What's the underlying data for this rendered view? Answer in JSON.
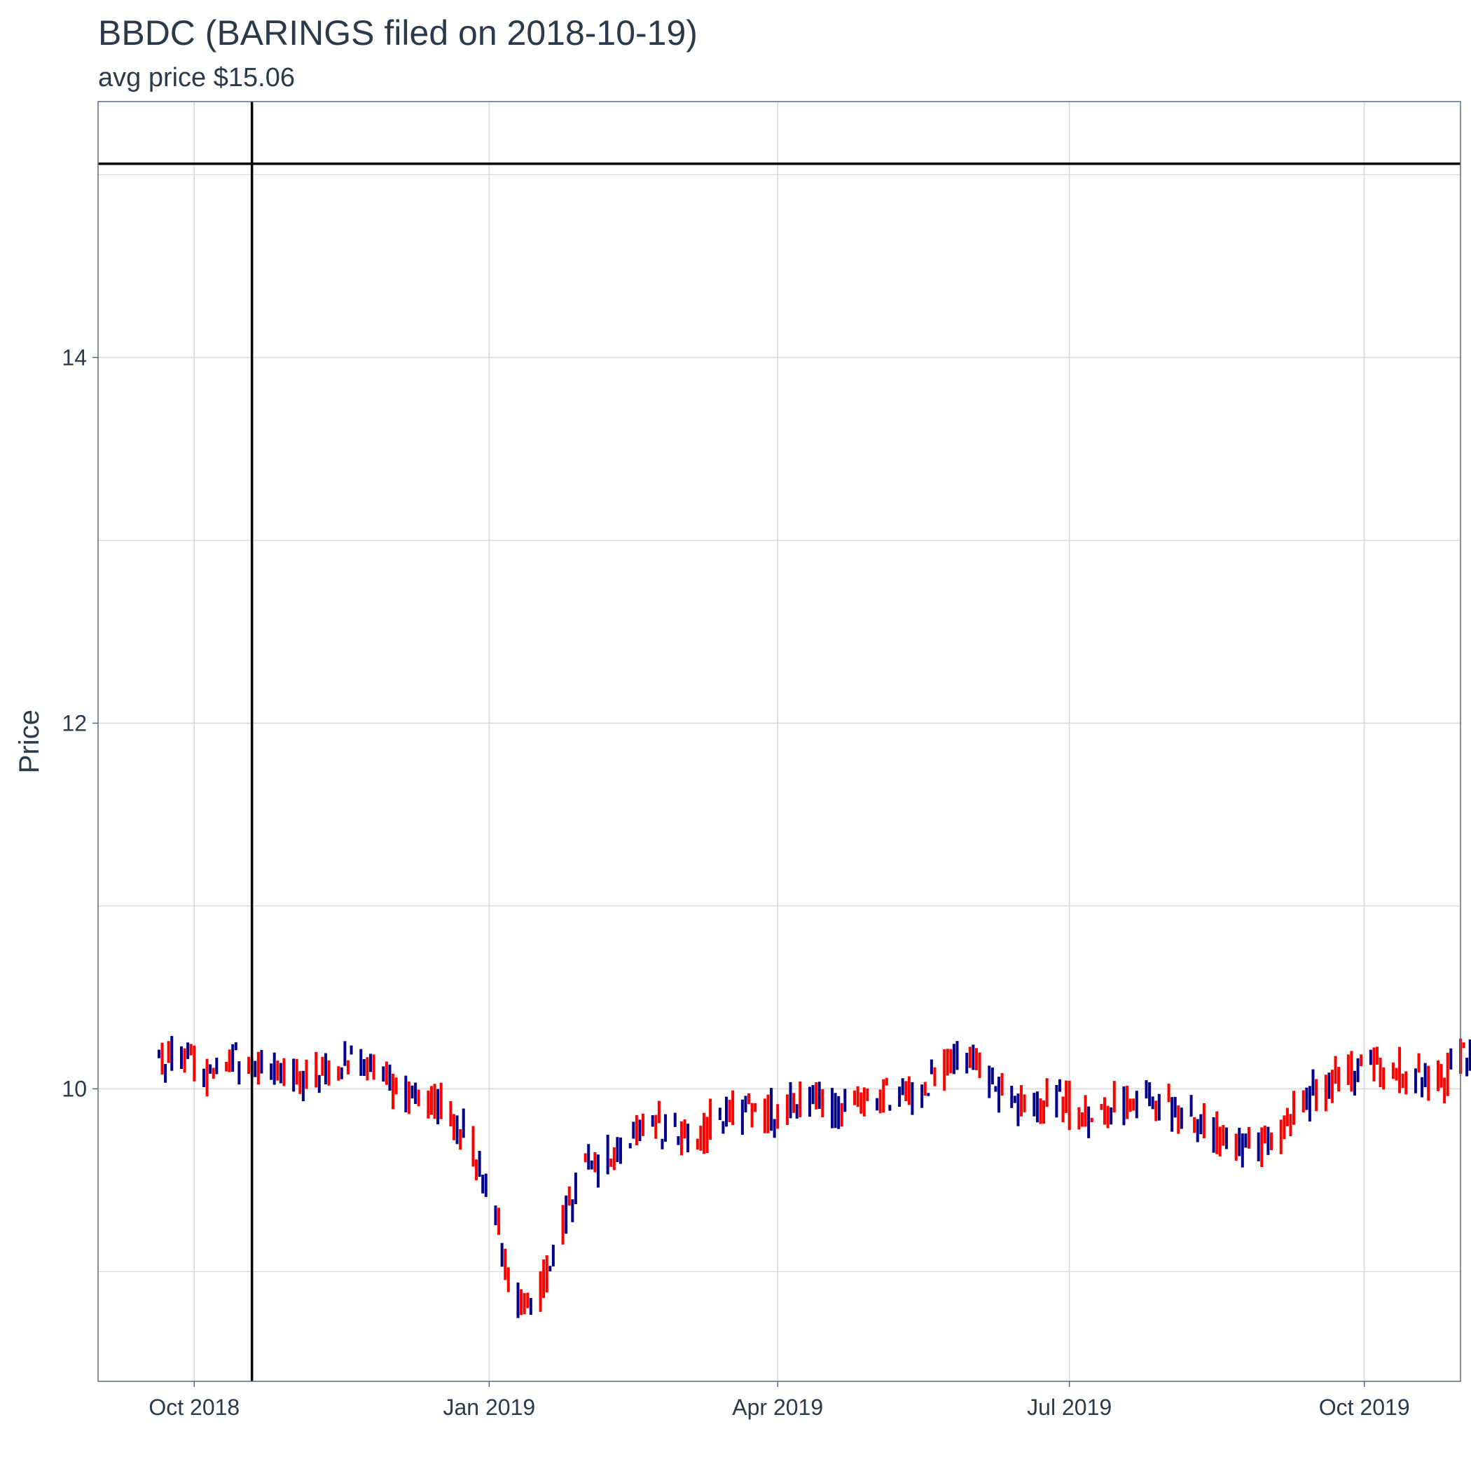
{
  "chart_data": {
    "type": "ohlc",
    "title": "BBDC (BARINGS filed on 2018-10-19)",
    "subtitle": "avg price $15.06",
    "ylabel": "Price",
    "xlabel": "",
    "xlim": [
      "2018-09-01",
      "2019-10-31"
    ],
    "ylim": [
      8.4,
      15.4
    ],
    "y_major_ticks": [
      10,
      12,
      14
    ],
    "y_minor_gridlines": [
      9,
      11,
      13,
      15
    ],
    "x_ticks": [
      {
        "date": "2018-10-01",
        "label": "Oct 2018"
      },
      {
        "date": "2019-01-01",
        "label": "Jan 2019"
      },
      {
        "date": "2019-04-01",
        "label": "Apr 2019"
      },
      {
        "date": "2019-07-01",
        "label": "Jul 2019"
      },
      {
        "date": "2019-10-01",
        "label": "Oct 2019"
      }
    ],
    "grid": true,
    "reference_lines": {
      "vertical_date": "2018-10-19",
      "horizontal_price": 15.06
    },
    "colors": {
      "up": "#00008b",
      "down": "#ff0000",
      "reference": "#000000",
      "grid": "#d9d9d9",
      "frame": "#5a6a7a",
      "text": "#2b3a4a"
    },
    "series": {
      "start_date": "2018-09-20",
      "start_price": 10.12,
      "weekly_close": [
        10.15,
        10.1,
        10.13,
        10.17,
        10.1,
        10.06,
        10.05,
        10.12,
        10.18,
        10.1,
        9.98,
        10.0,
        9.85,
        9.7,
        9.25,
        8.75,
        8.8,
        9.3,
        9.65,
        9.6,
        9.7,
        9.85,
        9.75,
        9.68,
        9.85,
        9.95,
        9.8,
        9.9,
        9.95,
        9.92,
        9.95,
        9.95,
        10.0,
        9.98,
        10.15,
        10.25,
        10.05,
        9.9,
        9.85,
        9.95,
        9.9,
        9.85,
        9.95,
        9.9,
        9.9,
        9.88,
        9.75,
        9.7,
        9.65,
        9.8,
        9.95,
        10.05,
        10.1,
        10.15,
        10.12,
        10.1,
        10.05,
        10.15,
        10.22
      ]
    }
  }
}
